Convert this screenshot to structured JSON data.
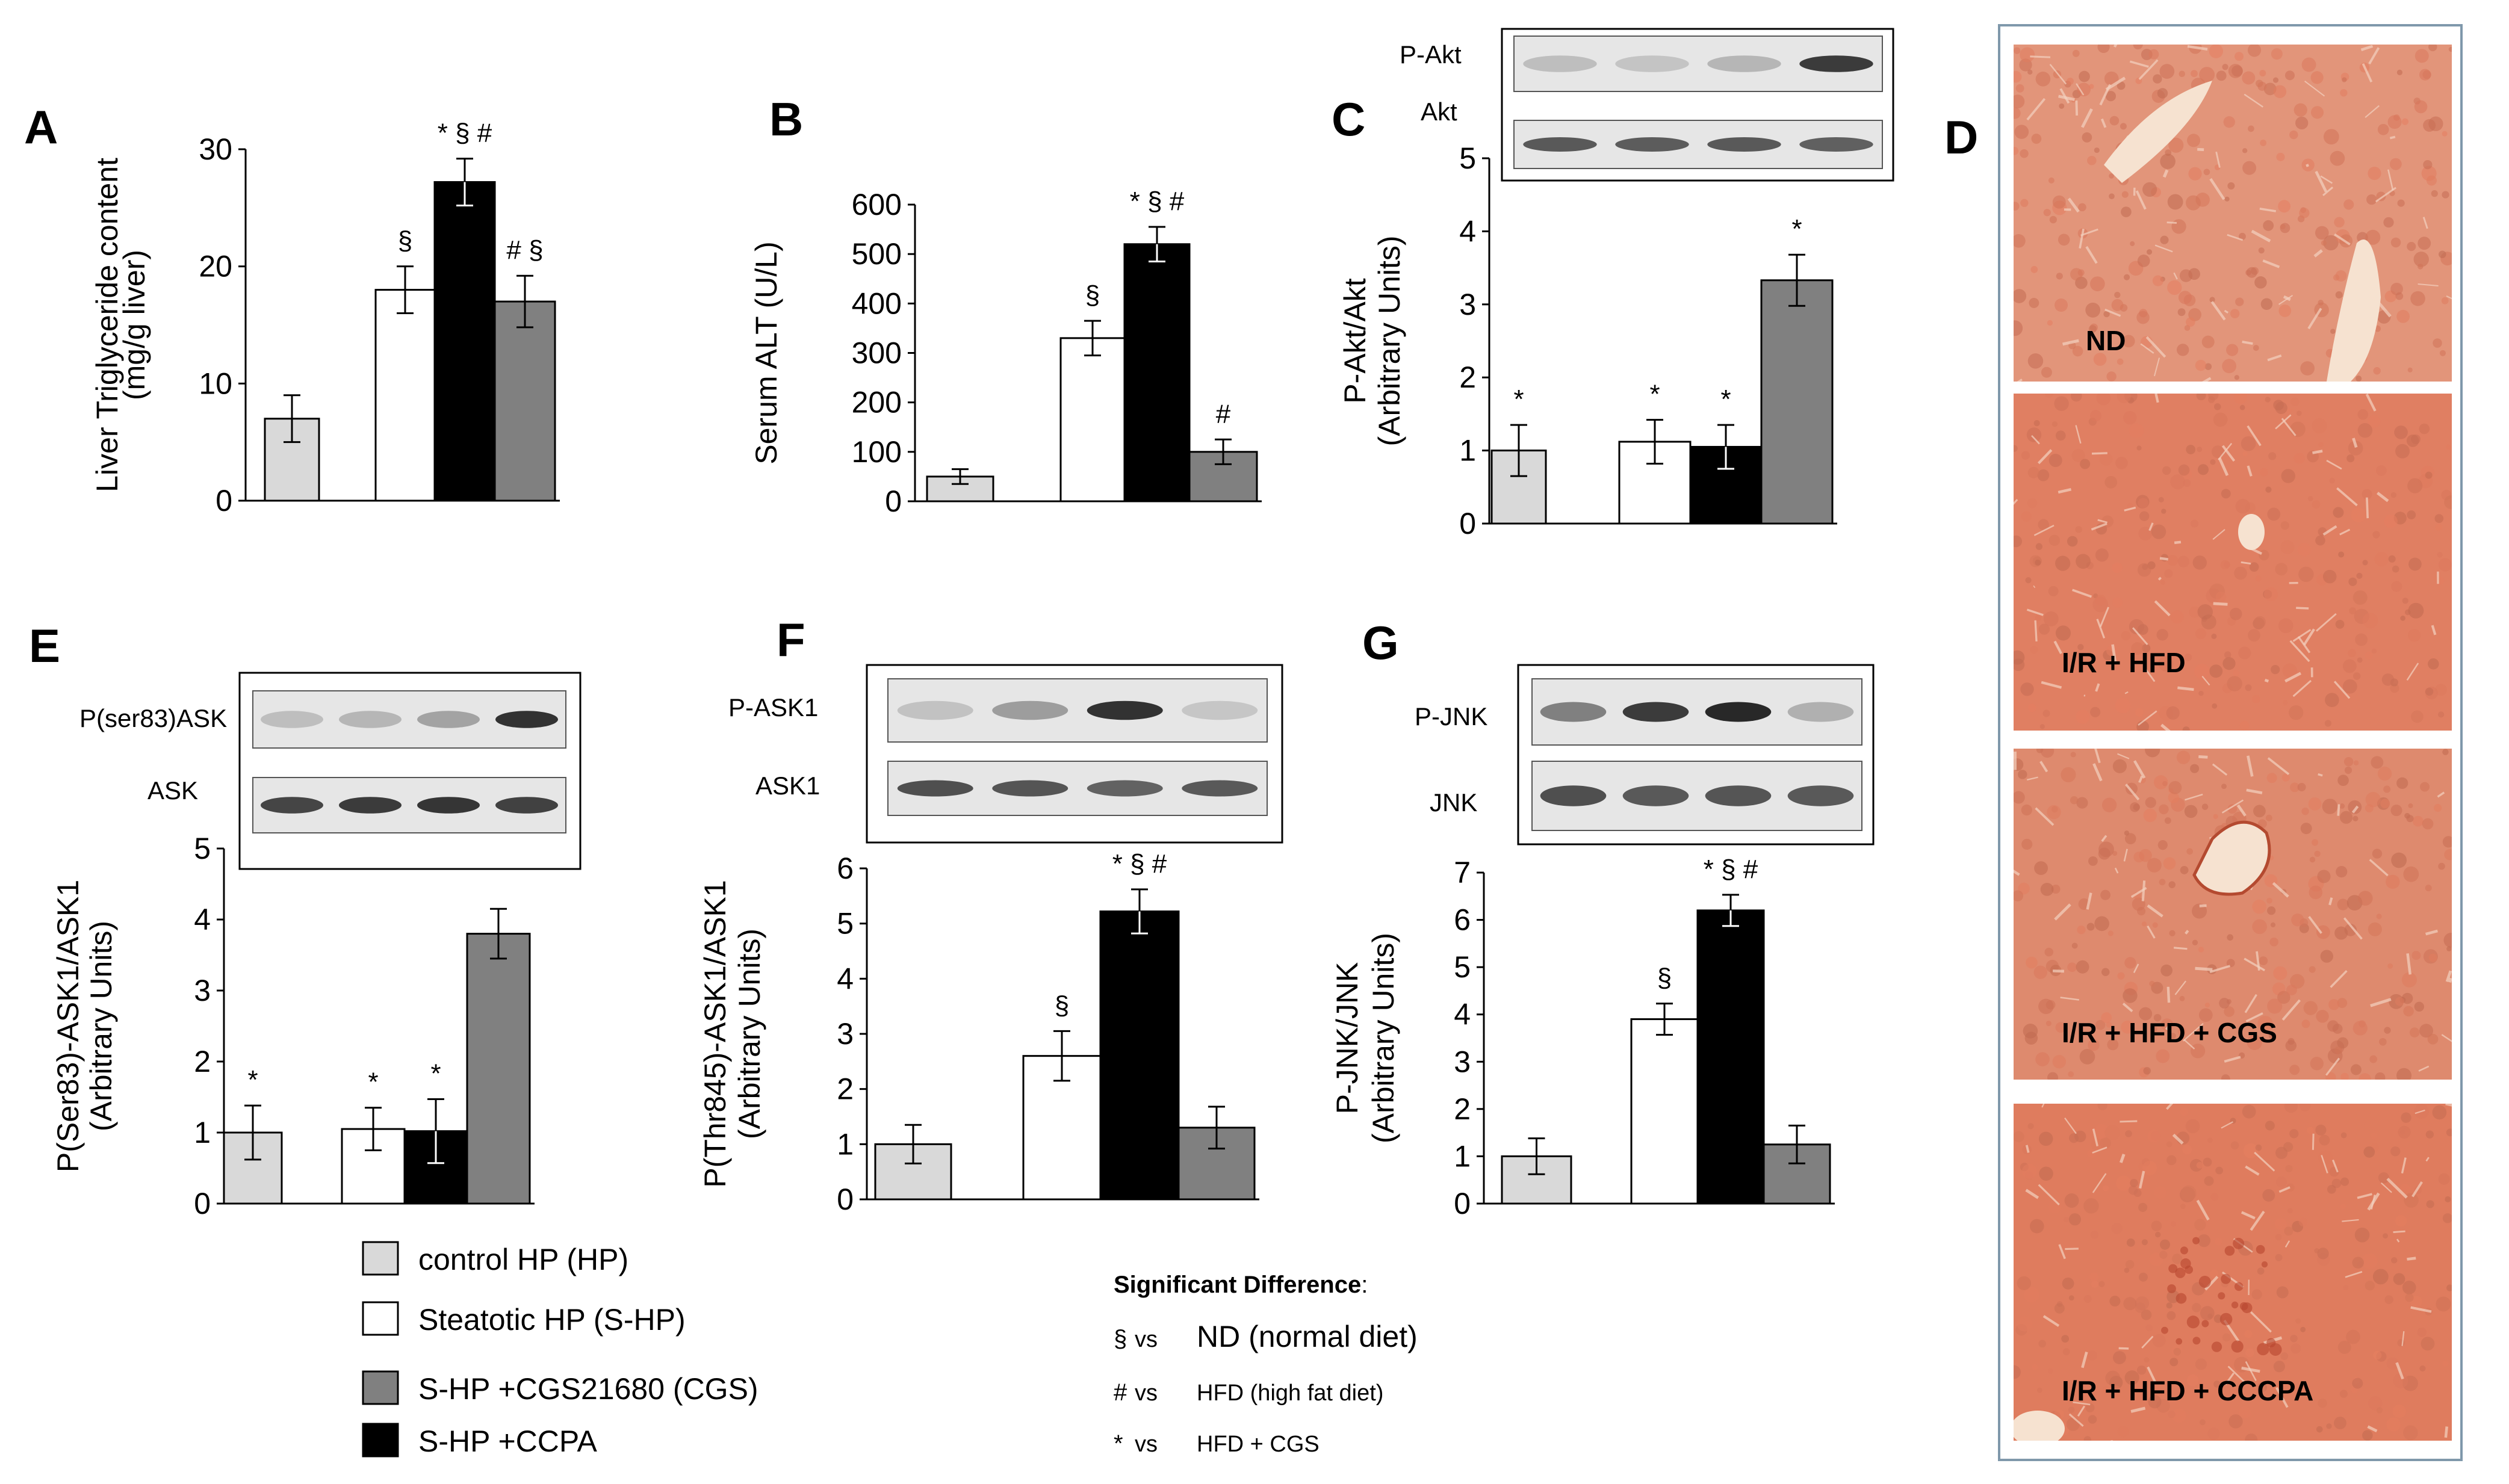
{
  "panel_letters": [
    "A",
    "B",
    "C",
    "D",
    "E",
    "F",
    "G"
  ],
  "chart_data": [
    {
      "id": "A",
      "type": "bar",
      "ylabel_lines": [
        "Liver Triglyceride content",
        "(mg/g liver)"
      ],
      "ylim": [
        0,
        30
      ],
      "yticks": [
        "0",
        "10",
        "20",
        "30"
      ],
      "bars": [
        {
          "series": "control HP (HP)",
          "value": 7,
          "err": 2,
          "sig": ""
        },
        {
          "series": "Steatotic HP (S-HP)",
          "value": 18,
          "err": 2,
          "sig": "§"
        },
        {
          "series": "S-HP +CCPA",
          "value": 27.2,
          "err": 2,
          "sig": "* § #"
        },
        {
          "series": "S-HP +CGS21680 (CGS)",
          "value": 17,
          "err": 2.2,
          "sig": "# §"
        }
      ]
    },
    {
      "id": "B",
      "type": "bar",
      "ylabel_lines": [
        "Serum ALT (U/L)"
      ],
      "ylim": [
        0,
        600
      ],
      "yticks": [
        "0",
        "100",
        "200",
        "300",
        "400",
        "500",
        "600"
      ],
      "bars": [
        {
          "series": "control HP (HP)",
          "value": 50,
          "err": 15,
          "sig": ""
        },
        {
          "series": "Steatotic HP (S-HP)",
          "value": 330,
          "err": 35,
          "sig": "§"
        },
        {
          "series": "S-HP +CCPA",
          "value": 520,
          "err": 35,
          "sig": "* § #"
        },
        {
          "series": "S-HP +CGS21680 (CGS)",
          "value": 100,
          "err": 25,
          "sig": "#"
        }
      ]
    },
    {
      "id": "C",
      "type": "bar",
      "ylabel_lines": [
        "P-Akt/Akt",
        "(Arbitrary Units)"
      ],
      "ylim": [
        0,
        5
      ],
      "yticks": [
        "0",
        "1",
        "2",
        "3",
        "4",
        "5"
      ],
      "blot_labels": [
        "P-Akt",
        "Akt"
      ],
      "bars": [
        {
          "series": "control HP (HP)",
          "value": 1.0,
          "err": 0.35,
          "sig": "*"
        },
        {
          "series": "Steatotic HP (S-HP)",
          "value": 1.12,
          "err": 0.3,
          "sig": "*"
        },
        {
          "series": "S-HP +CCPA",
          "value": 1.05,
          "err": 0.3,
          "sig": "*"
        },
        {
          "series": "S-HP +CGS21680 (CGS)",
          "value": 3.33,
          "err": 0.35,
          "sig": "*"
        }
      ]
    },
    {
      "id": "E",
      "type": "bar",
      "ylabel_lines": [
        "P(Ser83)-ASK1/ASK1",
        "(Arbitrary  Units)"
      ],
      "ylim": [
        0,
        5
      ],
      "yticks": [
        "0",
        "1",
        "2",
        "3",
        "4",
        "5"
      ],
      "blot_labels": [
        "P(ser83)ASK",
        "ASK"
      ],
      "bars": [
        {
          "series": "control HP (HP)",
          "value": 1.0,
          "err": 0.38,
          "sig": "*"
        },
        {
          "series": "Steatotic HP (S-HP)",
          "value": 1.05,
          "err": 0.3,
          "sig": "*"
        },
        {
          "series": "S-HP +CCPA",
          "value": 1.02,
          "err": 0.45,
          "sig": "*"
        },
        {
          "series": "S-HP +CGS21680 (CGS)",
          "value": 3.8,
          "err": 0.35,
          "sig": ""
        }
      ]
    },
    {
      "id": "F",
      "type": "bar",
      "ylabel_lines": [
        "P(Thr845)-ASK1/ASK1",
        "(Arbitrary  Units)"
      ],
      "ylim": [
        0,
        6
      ],
      "yticks": [
        "0",
        "1",
        "2",
        "3",
        "4",
        "5",
        "6"
      ],
      "blot_labels": [
        "P-ASK1",
        "ASK1"
      ],
      "bars": [
        {
          "series": "control HP (HP)",
          "value": 1.0,
          "err": 0.35,
          "sig": ""
        },
        {
          "series": "Steatotic HP (S-HP)",
          "value": 2.6,
          "err": 0.45,
          "sig": "§"
        },
        {
          "series": "S-HP +CCPA",
          "value": 5.22,
          "err": 0.4,
          "sig": "* § #"
        },
        {
          "series": "S-HP +CGS21680 (CGS)",
          "value": 1.3,
          "err": 0.38,
          "sig": ""
        }
      ]
    },
    {
      "id": "G",
      "type": "bar",
      "ylabel_lines": [
        "P-JNK/JNK",
        "(Arbitrary  Units)"
      ],
      "ylim": [
        0,
        7
      ],
      "yticks": [
        "0",
        "1",
        "2",
        "3",
        "4",
        "5",
        "6",
        "7"
      ],
      "blot_labels": [
        "P-JNK",
        "JNK"
      ],
      "bars": [
        {
          "series": "control HP (HP)",
          "value": 1.0,
          "err": 0.38,
          "sig": ""
        },
        {
          "series": "Steatotic HP (S-HP)",
          "value": 3.9,
          "err": 0.33,
          "sig": "§"
        },
        {
          "series": "S-HP +CCPA",
          "value": 6.2,
          "err": 0.33,
          "sig": "* § #"
        },
        {
          "series": "S-HP +CGS21680 (CGS)",
          "value": 1.25,
          "err": 0.4,
          "sig": ""
        }
      ]
    }
  ],
  "legend": [
    {
      "label": "control HP (HP)",
      "color": "#d9d9d9"
    },
    {
      "label": "Steatotic HP (S-HP)",
      "color": "#ffffff"
    },
    {
      "label": "S-HP +CGS21680 (CGS)",
      "color": "#808080"
    },
    {
      "label": "S-HP +CCPA",
      "color": "#000000"
    }
  ],
  "significance": {
    "title": "Significant Difference",
    "colon": ":",
    "items": [
      {
        "symbol": "§",
        "vs": "vs",
        "text": "ND (normal diet)"
      },
      {
        "symbol": "#",
        "vs": "vs",
        "text": "HFD (high fat diet)"
      },
      {
        "symbol": "*",
        "vs": "vs",
        "text": "HFD + CGS"
      }
    ]
  },
  "histology": [
    {
      "label": "ND"
    },
    {
      "label": "I/R + HFD"
    },
    {
      "label": "I/R + HFD + CGS"
    },
    {
      "label": "I/R + HFD + CCCPA"
    }
  ],
  "colors": {
    "control": "#d9d9d9",
    "steatotic": "#ffffff",
    "ccpa": "#000000",
    "cgs": "#808080",
    "tissue": "#e0846a",
    "panel_border": "#7f98ab"
  }
}
